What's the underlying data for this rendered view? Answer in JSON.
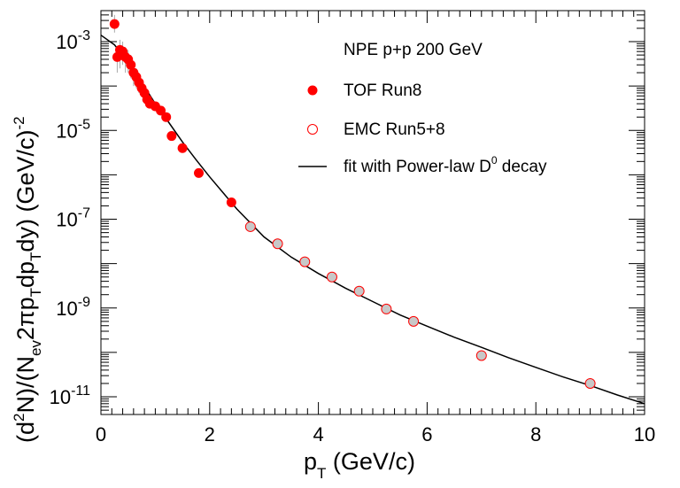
{
  "chart_data": {
    "type": "scatter",
    "title": "",
    "y_log": true,
    "xlim": [
      0,
      10
    ],
    "ylim": [
      4e-12,
      0.005
    ],
    "x_ticks": [
      "0",
      "2",
      "4",
      "6",
      "8",
      "10"
    ],
    "y_ticks": [
      {
        "base": "10",
        "exp": "-3",
        "value": 0.001
      },
      {
        "base": "10",
        "exp": "-5",
        "value": 1e-05
      },
      {
        "base": "10",
        "exp": "-7",
        "value": 1e-07
      },
      {
        "base": "10",
        "exp": "-9",
        "value": 1e-09
      },
      {
        "base": "10",
        "exp": "-11",
        "value": 1e-11
      }
    ],
    "xlabel": {
      "main": "p",
      "sub": "T",
      "rest": " (GeV/c)"
    },
    "ylabel": {
      "p1": "(d",
      "s1": "2",
      "p2": "N)/(N",
      "b1": "ev",
      "p3": "2πp",
      "b2": "T",
      "p4": "dp",
      "b3": "T",
      "p5": "dy) (GeV/c)",
      "s2": "-2"
    },
    "legend": {
      "header": "NPE p+p 200 GeV",
      "tof": "TOF Run8",
      "emc": "EMC Run5+8",
      "fit_main": "fit with Power-law D",
      "fit_sup": "0",
      "fit_rest": " decay"
    },
    "colors": {
      "marker": "#ff0000",
      "emc_fill": "#c8c8c8",
      "error_bar": "#aaaaaa",
      "fit": "#000000"
    },
    "series": [
      {
        "name": "TOF Run8",
        "marker": "filled-circle",
        "points": [
          {
            "x": 0.25,
            "y": 0.0025,
            "ylo": 0.0016,
            "yhi": 0.004
          },
          {
            "x": 0.3,
            "y": 0.00045,
            "ylo": 0.0002,
            "yhi": 0.00075
          },
          {
            "x": 0.35,
            "y": 0.00065,
            "ylo": 0.00025,
            "yhi": 0.0011
          },
          {
            "x": 0.4,
            "y": 0.0006,
            "ylo": 0.0003,
            "yhi": 0.001
          },
          {
            "x": 0.45,
            "y": 0.00045,
            "ylo": 0.0002,
            "yhi": 0.00075
          },
          {
            "x": 0.5,
            "y": 0.0004,
            "ylo": 0.0002,
            "yhi": 0.00065
          },
          {
            "x": 0.55,
            "y": 0.0003,
            "ylo": 0.00015,
            "yhi": 0.0005
          },
          {
            "x": 0.6,
            "y": 0.0002,
            "ylo": 0.0001,
            "yhi": 0.00032
          },
          {
            "x": 0.65,
            "y": 0.00016,
            "ylo": 9e-05,
            "yhi": 0.00025
          },
          {
            "x": 0.7,
            "y": 0.00012,
            "ylo": 7e-05,
            "yhi": 0.00018
          },
          {
            "x": 0.75,
            "y": 9e-05,
            "ylo": 6e-05,
            "yhi": 0.00013
          },
          {
            "x": 0.8,
            "y": 7e-05
          },
          {
            "x": 0.85,
            "y": 5e-05
          },
          {
            "x": 0.9,
            "y": 4e-05
          },
          {
            "x": 1.0,
            "y": 3.5e-05
          },
          {
            "x": 1.1,
            "y": 2.8e-05
          },
          {
            "x": 1.2,
            "y": 2e-05
          },
          {
            "x": 1.3,
            "y": 7.5e-06
          },
          {
            "x": 1.5,
            "y": 4e-06
          },
          {
            "x": 1.8,
            "y": 1.1e-06
          },
          {
            "x": 2.4,
            "y": 2.4e-07
          }
        ]
      },
      {
        "name": "EMC Run5+8",
        "marker": "open-circle",
        "points": [
          {
            "x": 2.75,
            "y": 6.8e-08
          },
          {
            "x": 3.25,
            "y": 2.8e-08
          },
          {
            "x": 3.75,
            "y": 1.1e-08
          },
          {
            "x": 4.25,
            "y": 5e-09
          },
          {
            "x": 4.75,
            "y": 2.4e-09
          },
          {
            "x": 5.25,
            "y": 9.5e-10
          },
          {
            "x": 5.75,
            "y": 5e-10
          },
          {
            "x": 7.0,
            "y": 8.5e-11
          },
          {
            "x": 9.0,
            "y": 2e-11
          }
        ]
      },
      {
        "name": "fit with Power-law D0 decay",
        "marker": "line",
        "points": [
          {
            "x": 0.0,
            "y": 0.0014
          },
          {
            "x": 0.25,
            "y": 0.00085
          },
          {
            "x": 0.5,
            "y": 0.00035
          },
          {
            "x": 0.75,
            "y": 0.00012
          },
          {
            "x": 1.0,
            "y": 4e-05
          },
          {
            "x": 1.25,
            "y": 1.5e-05
          },
          {
            "x": 1.5,
            "y": 5.5e-06
          },
          {
            "x": 1.75,
            "y": 2.2e-06
          },
          {
            "x": 2.0,
            "y": 9e-07
          },
          {
            "x": 2.5,
            "y": 1.7e-07
          },
          {
            "x": 3.0,
            "y": 4e-08
          },
          {
            "x": 3.5,
            "y": 1.4e-08
          },
          {
            "x": 4.0,
            "y": 6e-09
          },
          {
            "x": 4.5,
            "y": 2.8e-09
          },
          {
            "x": 5.0,
            "y": 1.4e-09
          },
          {
            "x": 5.5,
            "y": 7e-10
          },
          {
            "x": 6.0,
            "y": 3.9e-10
          },
          {
            "x": 6.5,
            "y": 2.2e-10
          },
          {
            "x": 7.0,
            "y": 1.3e-10
          },
          {
            "x": 7.5,
            "y": 7.6e-11
          },
          {
            "x": 8.0,
            "y": 4.6e-11
          },
          {
            "x": 8.5,
            "y": 2.8e-11
          },
          {
            "x": 9.0,
            "y": 1.8e-11
          },
          {
            "x": 9.5,
            "y": 1.1e-11
          },
          {
            "x": 10.0,
            "y": 7e-12
          }
        ]
      }
    ]
  }
}
